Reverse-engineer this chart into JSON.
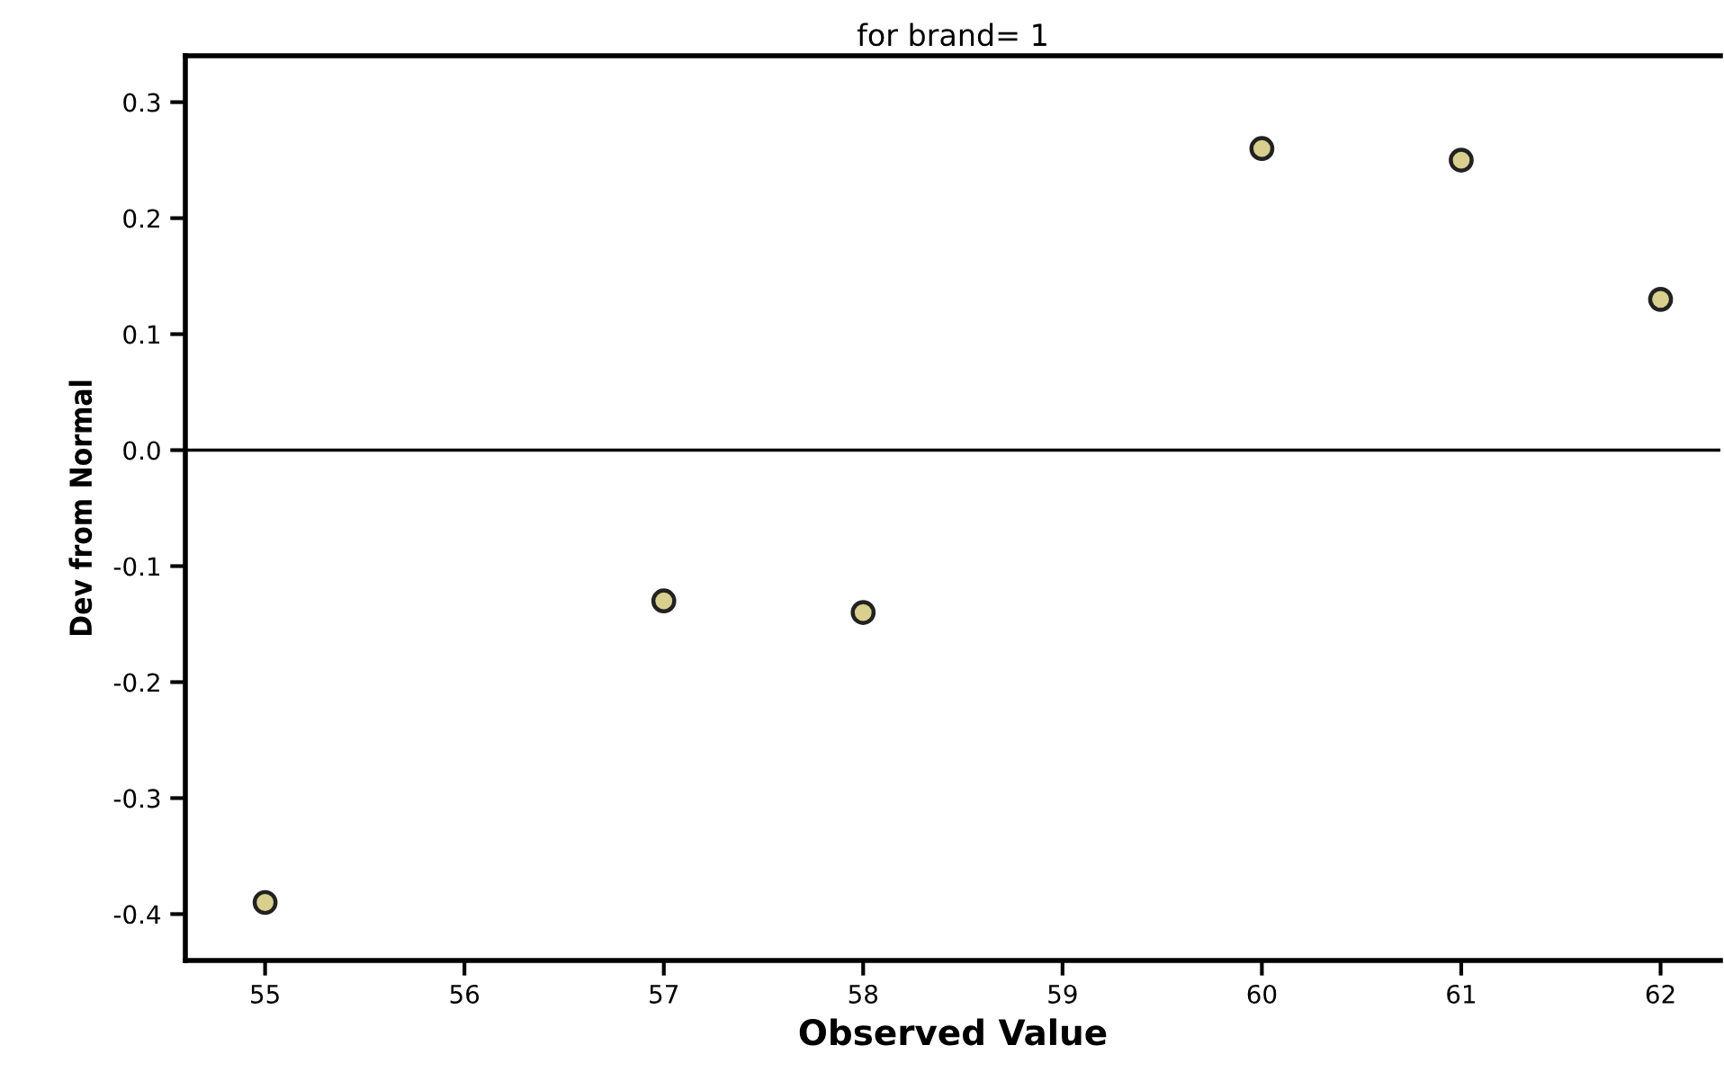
{
  "chart_data": {
    "type": "scatter",
    "title": "for brand= 1",
    "xlabel": "Observed Value",
    "ylabel": "Dev from Normal",
    "x": [
      55,
      57,
      58,
      60,
      61,
      62
    ],
    "values": [
      -0.39,
      -0.13,
      -0.14,
      0.26,
      0.25,
      0.13
    ],
    "color": "#d8d08c",
    "marker": "circle",
    "xlim": [
      54.6,
      62.3
    ],
    "xticks": [
      55,
      56,
      57,
      58,
      59,
      60,
      61,
      62
    ],
    "ylim": [
      -0.44,
      0.34
    ],
    "yticks": [
      -0.4,
      -0.3,
      -0.2,
      -0.1,
      {
        "value": 0,
        "label": "0.0"
      },
      0.1,
      0.2,
      0.3
    ],
    "ref_lines": [
      {
        "axis": "y",
        "value": 0,
        "color": "#000000"
      }
    ],
    "grid": false,
    "legend": false
  }
}
